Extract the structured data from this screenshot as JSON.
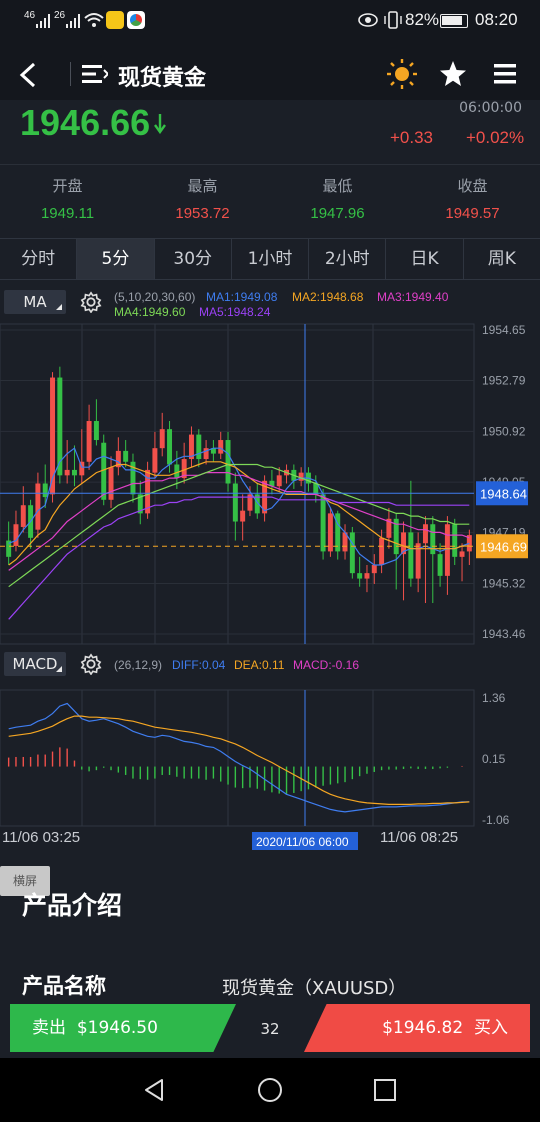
{
  "status_bar": {
    "network1": "46",
    "network2": "26",
    "battery": "82%",
    "time": "08:20"
  },
  "header": {
    "title": "现货黄金"
  },
  "quote": {
    "price": "1946.66",
    "time": "06:00:00",
    "change": "+0.33",
    "change_pct": "+0.02%",
    "colors": {
      "up": "#f2514b",
      "down": "#35c046"
    }
  },
  "stats": [
    {
      "label": "开盘",
      "value": "1949.11",
      "color": "#35c046"
    },
    {
      "label": "最高",
      "value": "1953.72",
      "color": "#f2514b"
    },
    {
      "label": "最低",
      "value": "1947.96",
      "color": "#35c046"
    },
    {
      "label": "收盘",
      "value": "1949.57",
      "color": "#f2514b"
    }
  ],
  "tabs": [
    "分时",
    "5分",
    "30分",
    "1小时",
    "2小时",
    "日K",
    "周K"
  ],
  "active_tab": 1,
  "ma_indicator": {
    "name": "MA",
    "params": "(5,10,20,30,60)",
    "ma1": "MA1:1949.08",
    "ma2": "MA2:1948.68",
    "ma3": "MA3:1949.40",
    "ma4": "MA4:1949.60",
    "ma5": "MA5:1948.24"
  },
  "macd_indicator": {
    "name": "MACD",
    "params": "(26,12,9)",
    "diff": "DIFF:0.04",
    "dea": "DEA:0.11",
    "macd": "MACD:-0.16"
  },
  "price_axis": [
    "1954.65",
    "1952.79",
    "1950.92",
    "1949.05",
    "1947.19",
    "1945.32",
    "1943.46"
  ],
  "price_tags": {
    "current": "1948.64",
    "last": "1946.69"
  },
  "macd_axis": [
    "1.36",
    "0.15",
    "-1.06"
  ],
  "time_axis": {
    "start": "11/06 03:25",
    "cursor": "2020/11/06 06:00",
    "end": "11/06 08:25"
  },
  "landscape_button": "横屏",
  "intro": {
    "heading": "产品介绍",
    "name_label": "产品名称",
    "name_value": "现货黄金（XAUUSD）"
  },
  "trade": {
    "sell_label": "卖出",
    "sell_price": "$1946.50",
    "spread": "32",
    "buy_price": "$1946.82",
    "buy_label": "买入"
  },
  "chart_data": {
    "type": "candlestick",
    "ylim": [
      1943.46,
      1954.65
    ],
    "candles": [
      {
        "o": 1946.9,
        "c": 1946.3,
        "h": 1947.6,
        "l": 1946.0
      },
      {
        "o": 1946.7,
        "c": 1947.5,
        "h": 1948.0,
        "l": 1946.5
      },
      {
        "o": 1947.4,
        "c": 1948.2,
        "h": 1948.9,
        "l": 1947.2
      },
      {
        "o": 1948.2,
        "c": 1947.0,
        "h": 1948.4,
        "l": 1946.6
      },
      {
        "o": 1947.3,
        "c": 1949.0,
        "h": 1949.4,
        "l": 1947.0
      },
      {
        "o": 1949.0,
        "c": 1948.5,
        "h": 1949.7,
        "l": 1948.1
      },
      {
        "o": 1948.6,
        "c": 1952.9,
        "h": 1953.1,
        "l": 1948.3
      },
      {
        "o": 1952.9,
        "c": 1949.3,
        "h": 1953.3,
        "l": 1949.0
      },
      {
        "o": 1949.3,
        "c": 1949.5,
        "h": 1950.6,
        "l": 1949.0
      },
      {
        "o": 1949.5,
        "c": 1949.3,
        "h": 1950.4,
        "l": 1948.9
      },
      {
        "o": 1949.3,
        "c": 1949.8,
        "h": 1951.0,
        "l": 1949.0
      },
      {
        "o": 1949.8,
        "c": 1951.3,
        "h": 1951.9,
        "l": 1949.5
      },
      {
        "o": 1951.3,
        "c": 1950.6,
        "h": 1952.1,
        "l": 1950.4
      },
      {
        "o": 1950.5,
        "c": 1948.4,
        "h": 1950.8,
        "l": 1948.2
      },
      {
        "o": 1948.4,
        "c": 1949.6,
        "h": 1950.0,
        "l": 1948.1
      },
      {
        "o": 1949.6,
        "c": 1950.2,
        "h": 1950.7,
        "l": 1949.3
      },
      {
        "o": 1950.2,
        "c": 1949.8,
        "h": 1950.6,
        "l": 1949.6
      },
      {
        "o": 1949.8,
        "c": 1948.6,
        "h": 1950.1,
        "l": 1948.3
      },
      {
        "o": 1948.6,
        "c": 1947.9,
        "h": 1949.1,
        "l": 1947.5
      },
      {
        "o": 1947.9,
        "c": 1949.5,
        "h": 1949.8,
        "l": 1947.7
      },
      {
        "o": 1949.4,
        "c": 1950.3,
        "h": 1950.9,
        "l": 1949.2
      },
      {
        "o": 1950.3,
        "c": 1951.0,
        "h": 1951.6,
        "l": 1950.0
      },
      {
        "o": 1951.0,
        "c": 1949.7,
        "h": 1951.3,
        "l": 1949.4
      },
      {
        "o": 1949.7,
        "c": 1949.2,
        "h": 1950.2,
        "l": 1948.8
      },
      {
        "o": 1949.2,
        "c": 1949.9,
        "h": 1950.5,
        "l": 1949.0
      },
      {
        "o": 1949.9,
        "c": 1950.8,
        "h": 1951.1,
        "l": 1949.6
      },
      {
        "o": 1950.8,
        "c": 1949.9,
        "h": 1951.0,
        "l": 1949.6
      },
      {
        "o": 1949.9,
        "c": 1950.3,
        "h": 1950.6,
        "l": 1949.7
      },
      {
        "o": 1950.3,
        "c": 1950.1,
        "h": 1950.6,
        "l": 1949.8
      },
      {
        "o": 1950.1,
        "c": 1950.6,
        "h": 1950.9,
        "l": 1949.9
      },
      {
        "o": 1950.6,
        "c": 1949.0,
        "h": 1950.9,
        "l": 1948.7
      },
      {
        "o": 1949.0,
        "c": 1947.6,
        "h": 1949.4,
        "l": 1946.9
      },
      {
        "o": 1947.6,
        "c": 1948.0,
        "h": 1948.6,
        "l": 1946.9
      },
      {
        "o": 1948.0,
        "c": 1948.6,
        "h": 1948.9,
        "l": 1947.8
      },
      {
        "o": 1948.6,
        "c": 1947.9,
        "h": 1949.0,
        "l": 1947.7
      },
      {
        "o": 1947.9,
        "c": 1949.1,
        "h": 1949.3,
        "l": 1947.6
      },
      {
        "o": 1949.1,
        "c": 1948.9,
        "h": 1949.5,
        "l": 1948.6
      },
      {
        "o": 1948.9,
        "c": 1949.3,
        "h": 1949.6,
        "l": 1948.7
      },
      {
        "o": 1949.3,
        "c": 1949.5,
        "h": 1949.7,
        "l": 1949.0
      },
      {
        "o": 1949.5,
        "c": 1949.1,
        "h": 1949.7,
        "l": 1948.8
      },
      {
        "o": 1949.1,
        "c": 1949.4,
        "h": 1949.6,
        "l": 1948.9
      },
      {
        "o": 1949.4,
        "c": 1949.0,
        "h": 1949.6,
        "l": 1948.7
      },
      {
        "o": 1949.0,
        "c": 1948.6,
        "h": 1949.3,
        "l": 1948.3
      },
      {
        "o": 1948.6,
        "c": 1946.5,
        "h": 1948.8,
        "l": 1946.2
      },
      {
        "o": 1946.5,
        "c": 1947.9,
        "h": 1948.1,
        "l": 1946.3
      },
      {
        "o": 1947.9,
        "c": 1946.5,
        "h": 1948.0,
        "l": 1946.2
      },
      {
        "o": 1946.5,
        "c": 1947.2,
        "h": 1947.5,
        "l": 1946.2
      },
      {
        "o": 1947.2,
        "c": 1945.7,
        "h": 1947.4,
        "l": 1945.5
      },
      {
        "o": 1945.7,
        "c": 1945.5,
        "h": 1946.3,
        "l": 1945.2
      },
      {
        "o": 1945.5,
        "c": 1945.7,
        "h": 1946.0,
        "l": 1945.0
      },
      {
        "o": 1945.7,
        "c": 1946.0,
        "h": 1946.4,
        "l": 1945.3
      },
      {
        "o": 1946.0,
        "c": 1947.0,
        "h": 1947.3,
        "l": 1945.7
      },
      {
        "o": 1947.0,
        "c": 1947.7,
        "h": 1948.1,
        "l": 1946.6
      },
      {
        "o": 1947.7,
        "c": 1946.4,
        "h": 1947.9,
        "l": 1945.1
      },
      {
        "o": 1946.4,
        "c": 1947.2,
        "h": 1947.6,
        "l": 1944.7
      },
      {
        "o": 1947.2,
        "c": 1945.5,
        "h": 1949.1,
        "l": 1945.2
      },
      {
        "o": 1945.5,
        "c": 1946.8,
        "h": 1947.2,
        "l": 1945.0
      },
      {
        "o": 1946.8,
        "c": 1947.5,
        "h": 1947.8,
        "l": 1944.6
      },
      {
        "o": 1947.5,
        "c": 1946.4,
        "h": 1947.8,
        "l": 1944.6
      },
      {
        "o": 1946.4,
        "c": 1945.6,
        "h": 1946.8,
        "l": 1945.2
      },
      {
        "o": 1945.6,
        "c": 1947.5,
        "h": 1947.8,
        "l": 1944.9
      },
      {
        "o": 1947.5,
        "c": 1946.3,
        "h": 1947.7,
        "l": 1946.0
      },
      {
        "o": 1946.3,
        "c": 1946.5,
        "h": 1946.8,
        "l": 1945.4
      },
      {
        "o": 1946.5,
        "c": 1947.1,
        "h": 1947.3,
        "l": 1946.0
      }
    ],
    "ma_lines": [
      {
        "name": "MA1",
        "color": "#3f7df0",
        "values": [
          1946.8,
          1946.9,
          1947.3,
          1947.6,
          1948.0,
          1948.2,
          1949.2,
          1949.8,
          1950.1,
          1950.3,
          1949.6,
          1949.6,
          1949.9,
          1950.0,
          1949.9,
          1949.8,
          1949.5,
          1949.5,
          1949.4,
          1949.2,
          1949.2,
          1949.5,
          1949.7,
          1949.9,
          1950.0,
          1950.0,
          1950.1,
          1950.2,
          1950.3,
          1950.3,
          1950.1,
          1949.6,
          1949.1,
          1948.7,
          1948.3,
          1948.0,
          1948.1,
          1948.4,
          1948.8,
          1949.1,
          1949.2,
          1949.2,
          1949.1,
          1948.6,
          1948.1,
          1947.5,
          1947.2,
          1946.8,
          1946.4,
          1946.2,
          1946.0,
          1946.0,
          1946.1,
          1946.2,
          1946.5,
          1946.6,
          1946.6,
          1946.7,
          1946.6,
          1946.5,
          1946.6,
          1946.6,
          1946.7,
          1946.8
        ]
      },
      {
        "name": "MA2",
        "color": "#f5a623",
        "values": [
          1946.0,
          1946.2,
          1946.5,
          1946.8,
          1947.1,
          1947.3,
          1947.8,
          1948.2,
          1948.5,
          1948.8,
          1949.0,
          1949.2,
          1949.4,
          1949.5,
          1949.6,
          1949.7,
          1949.7,
          1949.6,
          1949.5,
          1949.4,
          1949.3,
          1949.3,
          1949.3,
          1949.4,
          1949.5,
          1949.6,
          1949.7,
          1949.8,
          1949.8,
          1949.8,
          1949.7,
          1949.6,
          1949.4,
          1949.2,
          1949.0,
          1948.9,
          1948.8,
          1948.7,
          1948.6,
          1948.6,
          1948.6,
          1948.6,
          1948.6,
          1948.5,
          1948.3,
          1948.2,
          1948.0,
          1947.8,
          1947.6,
          1947.4,
          1947.2,
          1947.0,
          1946.9,
          1946.8,
          1946.7,
          1946.6,
          1946.6,
          1946.6,
          1946.6,
          1946.6,
          1946.6,
          1946.6,
          1946.7,
          1946.7
        ]
      },
      {
        "name": "MA3",
        "color": "#e040c8",
        "values": [
          1945.8,
          1946.0,
          1946.2,
          1946.4,
          1946.6,
          1946.8,
          1947.0,
          1947.3,
          1947.6,
          1947.8,
          1948.0,
          1948.2,
          1948.4,
          1948.6,
          1948.7,
          1948.8,
          1948.9,
          1949.0,
          1949.0,
          1949.1,
          1949.1,
          1949.1,
          1949.2,
          1949.2,
          1949.3,
          1949.3,
          1949.3,
          1949.4,
          1949.4,
          1949.4,
          1949.4,
          1949.3,
          1949.3,
          1949.2,
          1949.1,
          1949.0,
          1948.9,
          1948.8,
          1948.7,
          1948.7,
          1948.7,
          1948.6,
          1948.6,
          1948.5,
          1948.4,
          1948.3,
          1948.2,
          1948.1,
          1948.0,
          1947.9,
          1947.8,
          1947.7,
          1947.6,
          1947.5,
          1947.5,
          1947.4,
          1947.3,
          1947.3,
          1947.2,
          1947.2,
          1947.1,
          1947.1,
          1947.1,
          1947.0
        ]
      },
      {
        "name": "MA4",
        "color": "#7ed957",
        "values": [
          1945.2,
          1945.4,
          1945.6,
          1945.8,
          1946.0,
          1946.2,
          1946.4,
          1946.6,
          1946.8,
          1947.0,
          1947.2,
          1947.4,
          1947.6,
          1947.8,
          1948.0,
          1948.2,
          1948.3,
          1948.4,
          1948.5,
          1948.6,
          1948.7,
          1948.8,
          1948.9,
          1949.0,
          1949.1,
          1949.2,
          1949.3,
          1949.4,
          1949.5,
          1949.6,
          1949.7,
          1949.7,
          1949.7,
          1949.7,
          1949.7,
          1949.6,
          1949.6,
          1949.5,
          1949.4,
          1949.3,
          1949.2,
          1949.1,
          1949.0,
          1948.9,
          1948.8,
          1948.7,
          1948.6,
          1948.5,
          1948.4,
          1948.3,
          1948.2,
          1948.1,
          1948.0,
          1947.9,
          1947.9,
          1947.8,
          1947.8,
          1947.7,
          1947.7,
          1947.6,
          1947.6,
          1947.5,
          1947.5,
          1947.5
        ]
      },
      {
        "name": "MA5",
        "color": "#9b42f5",
        "values": [
          1944.0,
          1944.3,
          1944.6,
          1944.9,
          1945.2,
          1945.5,
          1945.8,
          1946.1,
          1946.4,
          1946.6,
          1946.8,
          1947.0,
          1947.2,
          1947.4,
          1947.5,
          1947.7,
          1947.8,
          1947.9,
          1948.0,
          1948.1,
          1948.2,
          1948.2,
          1948.3,
          1948.3,
          1948.4,
          1948.4,
          1948.5,
          1948.5,
          1948.5,
          1948.5,
          1948.5,
          1948.5,
          1948.5,
          1948.5,
          1948.5,
          1948.5,
          1948.5,
          1948.4,
          1948.4,
          1948.4,
          1948.4,
          1948.4,
          1948.4,
          1948.4,
          1948.4,
          1948.3,
          1948.3,
          1948.3,
          1948.3,
          1948.3,
          1948.3,
          1948.3,
          1948.3,
          1948.2,
          1948.2,
          1948.2,
          1948.2,
          1948.2,
          1948.2,
          1948.2,
          1948.2,
          1948.2,
          1948.2,
          1948.2
        ]
      }
    ],
    "macd": {
      "ylim": [
        -1.06,
        1.36
      ],
      "diff": [
        0.75,
        0.78,
        0.8,
        0.82,
        0.9,
        0.95,
        1.05,
        1.2,
        1.25,
        1.1,
        0.95,
        0.9,
        0.92,
        0.95,
        0.9,
        0.85,
        0.78,
        0.7,
        0.65,
        0.6,
        0.58,
        0.62,
        0.6,
        0.55,
        0.5,
        0.48,
        0.45,
        0.4,
        0.38,
        0.3,
        0.2,
        0.1,
        0.02,
        -0.05,
        -0.15,
        -0.25,
        -0.35,
        -0.45,
        -0.55,
        -0.6,
        -0.65,
        -0.7,
        -0.75,
        -0.8,
        -0.85,
        -0.88,
        -0.9,
        -0.88,
        -0.86,
        -0.84,
        -0.82,
        -0.8,
        -0.8,
        -0.8,
        -0.79,
        -0.78,
        -0.78,
        -0.78,
        -0.77,
        -0.76,
        -0.74,
        -0.72,
        -0.7,
        -0.7
      ],
      "dea": [
        0.6,
        0.62,
        0.64,
        0.66,
        0.7,
        0.75,
        0.8,
        0.88,
        0.95,
        1.0,
        1.0,
        0.98,
        0.98,
        0.97,
        0.96,
        0.95,
        0.92,
        0.9,
        0.86,
        0.82,
        0.78,
        0.76,
        0.74,
        0.72,
        0.7,
        0.68,
        0.65,
        0.62,
        0.58,
        0.55,
        0.5,
        0.45,
        0.38,
        0.3,
        0.22,
        0.15,
        0.08,
        0.0,
        -0.08,
        -0.16,
        -0.24,
        -0.32,
        -0.4,
        -0.48,
        -0.55,
        -0.6,
        -0.64,
        -0.67,
        -0.7,
        -0.72,
        -0.73,
        -0.74,
        -0.75,
        -0.75,
        -0.75,
        -0.75,
        -0.74,
        -0.74,
        -0.73,
        -0.73,
        -0.72,
        -0.72,
        -0.71,
        -0.7
      ],
      "hist": [
        0.15,
        0.16,
        0.16,
        0.16,
        0.2,
        0.2,
        0.25,
        0.32,
        0.3,
        0.1,
        -0.05,
        -0.08,
        -0.06,
        -0.02,
        -0.06,
        -0.1,
        -0.14,
        -0.2,
        -0.21,
        -0.22,
        -0.2,
        -0.14,
        -0.14,
        -0.17,
        -0.2,
        -0.2,
        -0.2,
        -0.22,
        -0.2,
        -0.25,
        -0.3,
        -0.35,
        -0.36,
        -0.35,
        -0.37,
        -0.4,
        -0.43,
        -0.45,
        -0.47,
        -0.44,
        -0.41,
        -0.38,
        -0.35,
        -0.32,
        -0.3,
        -0.28,
        -0.26,
        -0.21,
        -0.16,
        -0.12,
        -0.09,
        -0.06,
        -0.05,
        -0.05,
        -0.04,
        -0.03,
        -0.04,
        -0.04,
        -0.04,
        -0.03,
        -0.02,
        0.0,
        0.01,
        0.0
      ]
    }
  }
}
